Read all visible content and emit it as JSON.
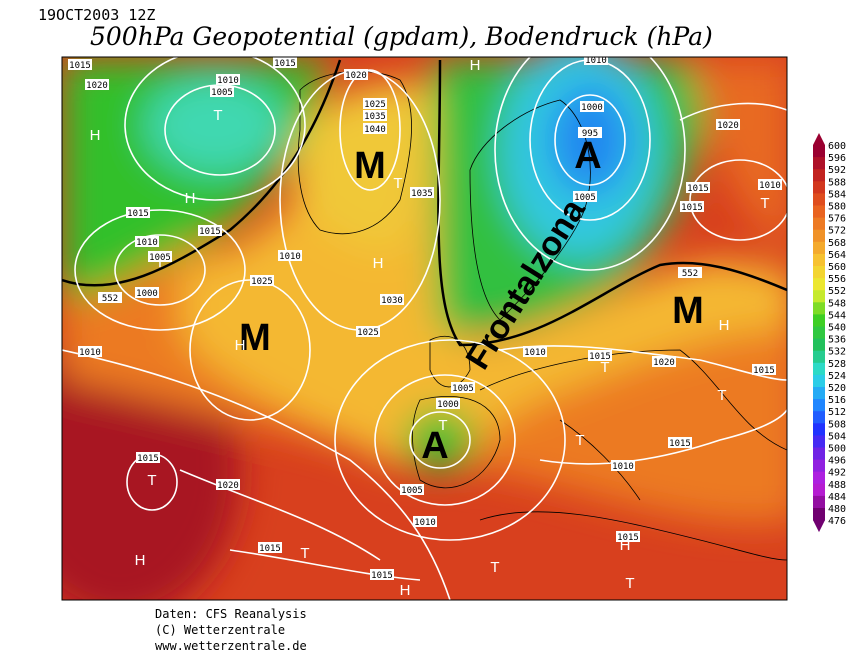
{
  "header": {
    "date": "19OCT2003 12Z",
    "title": "500hPa Geopotential (gpdam), Bodendruck (hPa)"
  },
  "colorbar": {
    "ticks": [
      600,
      596,
      592,
      588,
      584,
      580,
      576,
      572,
      568,
      564,
      560,
      556,
      552,
      548,
      544,
      540,
      536,
      532,
      528,
      524,
      520,
      516,
      512,
      508,
      504,
      500,
      496,
      492,
      488,
      484,
      480,
      476
    ],
    "color_stops": [
      "#9a0030",
      "#c8281e",
      "#e85a1e",
      "#f09028",
      "#f8c832",
      "#e8f030",
      "#40d020",
      "#20c060",
      "#30e0e0",
      "#2090ff",
      "#2030ff",
      "#8020e0",
      "#c020e0",
      "#700070"
    ]
  },
  "annotations": {
    "big": [
      "M",
      "M",
      "M",
      "A",
      "A"
    ],
    "front": "Frontalzona",
    "centers": [
      "H",
      "H",
      "T",
      "T",
      "H",
      "T",
      "H",
      "T",
      "H",
      "H",
      "T",
      "T",
      "T",
      "T",
      "T",
      "H",
      "T",
      "H",
      "T",
      "H",
      "T"
    ],
    "isobars": [
      1015,
      1020,
      1010,
      1005,
      1015,
      1020,
      1025,
      1035,
      1040,
      1035,
      1015,
      1015,
      1010,
      1005,
      1000,
      552,
      1010,
      1025,
      1030,
      1025,
      1010,
      1000,
      995,
      1005,
      1015,
      1015,
      1020,
      1010,
      552,
      1010,
      1015,
      1020,
      1015,
      1005,
      1000,
      1015,
      1010,
      1015,
      1020,
      1005,
      1010,
      1015,
      1015,
      1015,
      1010
    ]
  },
  "footer": {
    "source": "Daten: CFS Reanalysis",
    "copyright": "(C) Wetterzentrale",
    "url": "www.wetterzentrale.de"
  }
}
